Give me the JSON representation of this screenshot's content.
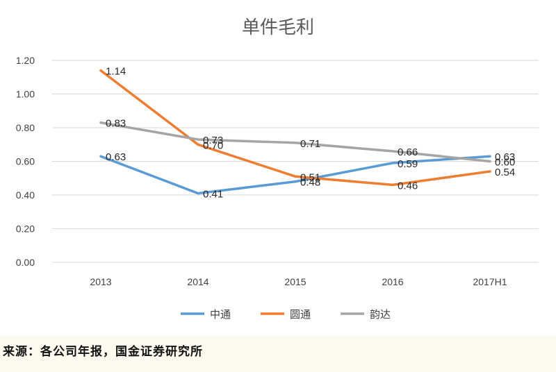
{
  "chart_data": {
    "type": "line",
    "title": "单件毛利",
    "categories": [
      "2013",
      "2014",
      "2015",
      "2016",
      "2017H1"
    ],
    "ylim": [
      0,
      1.2
    ],
    "yticks": [
      "0.00",
      "0.20",
      "0.40",
      "0.60",
      "0.80",
      "1.00",
      "1.20"
    ],
    "grid": true,
    "legend_position": "bottom",
    "series": [
      {
        "name": "中通",
        "color": "#5b9bd5",
        "values": [
          0.63,
          0.41,
          0.48,
          0.59,
          0.63
        ],
        "labels": [
          "0.63",
          "0.41",
          "0.48",
          "0.59",
          "0.63"
        ]
      },
      {
        "name": "圆通",
        "color": "#ed7d31",
        "values": [
          1.14,
          0.7,
          0.51,
          0.46,
          0.54
        ],
        "labels": [
          "1.14",
          "0.70",
          "0.51",
          "0.46",
          "0.54"
        ]
      },
      {
        "name": "韵达",
        "color": "#a5a5a5",
        "values": [
          0.83,
          0.73,
          0.71,
          0.66,
          0.6
        ],
        "labels": [
          "0.83",
          "0.73",
          "0.71",
          "0.66",
          "0.60"
        ]
      }
    ]
  },
  "source": "来源：各公司年报，国金证券研究所"
}
